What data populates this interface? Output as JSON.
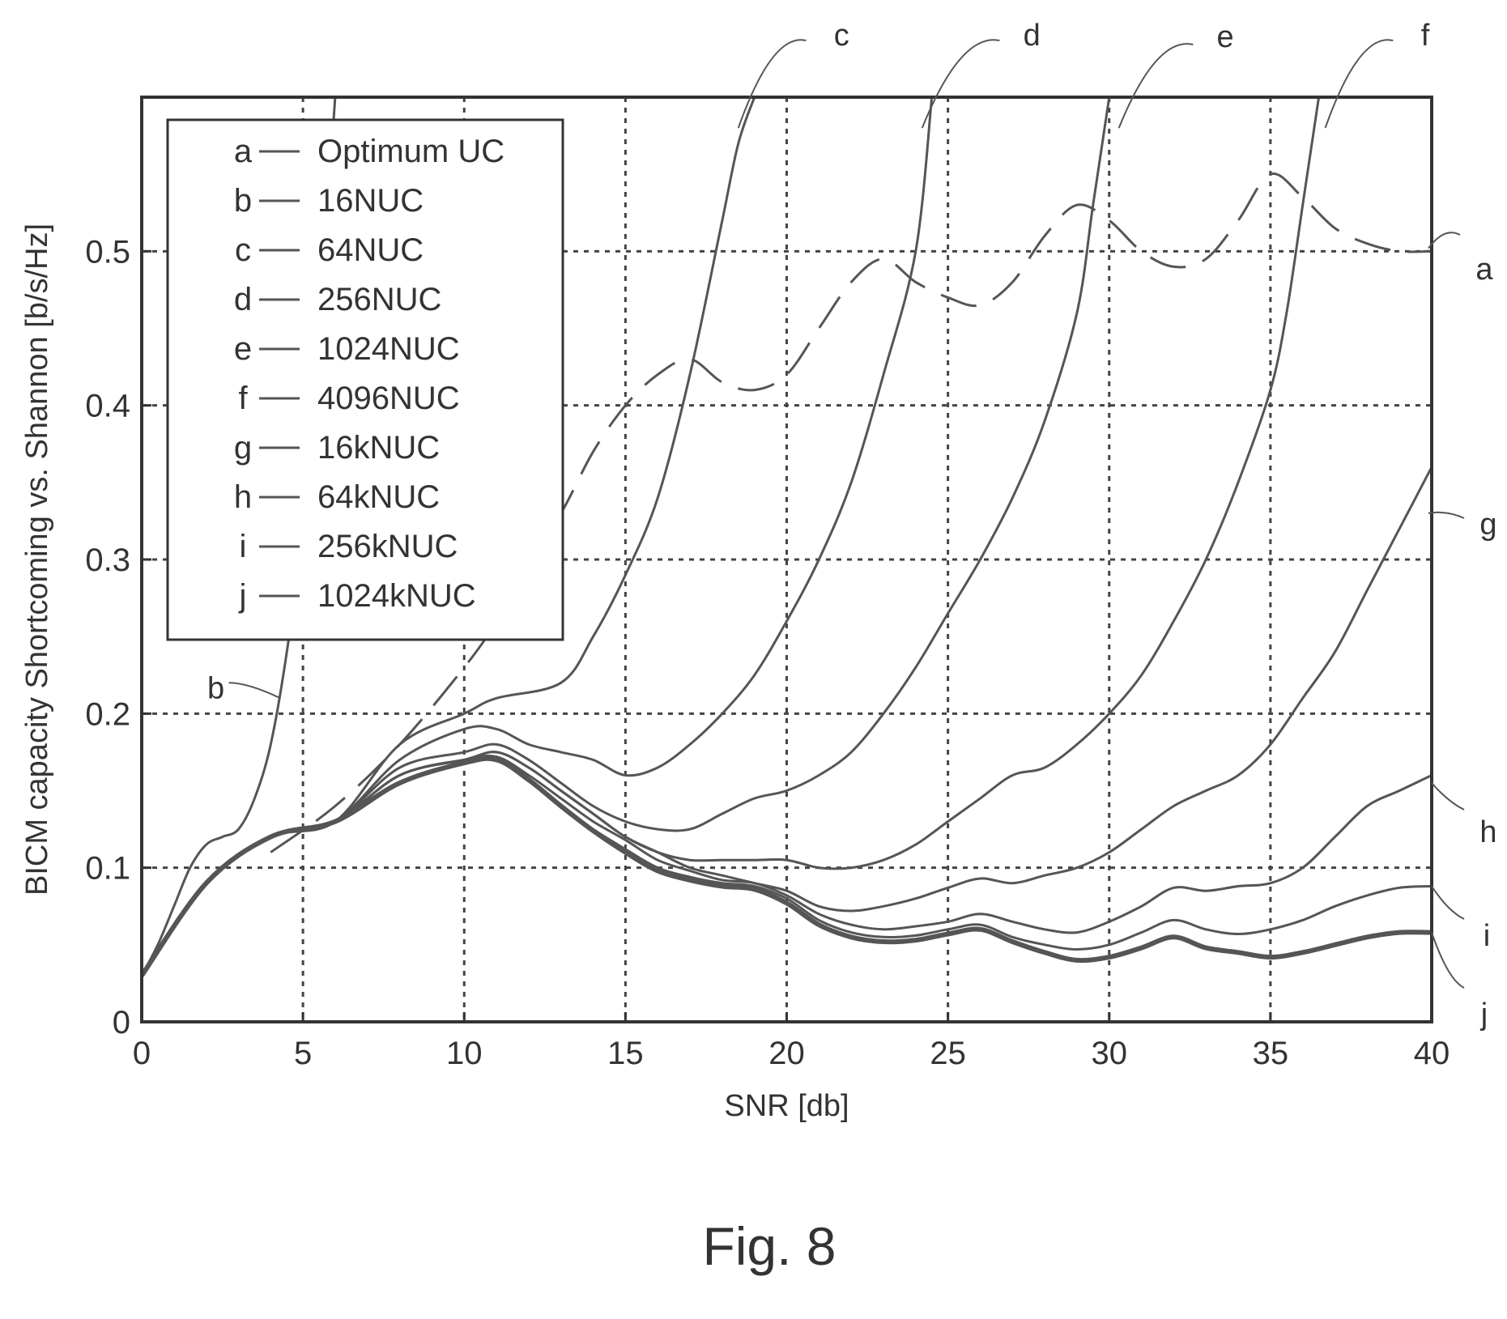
{
  "figure": {
    "caption": "Fig. 8"
  },
  "chart_data": {
    "type": "line",
    "xlabel": "SNR [db]",
    "ylabel": "BICM capacity Shortcoming vs. Shannon [b/s/Hz]",
    "xlim": [
      0,
      40
    ],
    "ylim": [
      0,
      0.6
    ],
    "xticks": [
      0,
      5,
      10,
      15,
      20,
      25,
      30,
      35,
      40
    ],
    "xtick_labels": [
      "0",
      "5",
      "10",
      "15",
      "20",
      "25",
      "30",
      "35",
      "40"
    ],
    "yticks": [
      0,
      0.1,
      0.2,
      0.3,
      0.4,
      0.5
    ],
    "ytick_labels": [
      "0",
      "0.1",
      "0.2",
      "0.3",
      "0.4",
      "0.5"
    ],
    "grid": true,
    "legend_position": "top-left",
    "colors": {
      "line": "#555555",
      "grid": "#444444",
      "frame": "#333333"
    },
    "series": [
      {
        "name": "Optimum UC",
        "letter": "a",
        "dash": true,
        "x": [
          4,
          6,
          8,
          10,
          11,
          12,
          13,
          14,
          15,
          16,
          17,
          18,
          19,
          20,
          21,
          22,
          23,
          24,
          25,
          26,
          27,
          28,
          29,
          30,
          31,
          32,
          33,
          34,
          35,
          36,
          37,
          38,
          39,
          40
        ],
        "y": [
          0.11,
          0.14,
          0.18,
          0.23,
          0.26,
          0.3,
          0.33,
          0.37,
          0.4,
          0.42,
          0.43,
          0.415,
          0.41,
          0.42,
          0.45,
          0.48,
          0.495,
          0.48,
          0.47,
          0.465,
          0.48,
          0.51,
          0.53,
          0.52,
          0.5,
          0.49,
          0.495,
          0.52,
          0.55,
          0.535,
          0.515,
          0.505,
          0.5,
          0.5
        ]
      },
      {
        "name": "16NUC",
        "letter": "b",
        "x": [
          0,
          0.5,
          1,
          1.5,
          2,
          2.5,
          3,
          3.5,
          4,
          4.5,
          5,
          5.5,
          6
        ],
        "y": [
          0.03,
          0.05,
          0.075,
          0.1,
          0.115,
          0.12,
          0.125,
          0.145,
          0.18,
          0.24,
          0.32,
          0.45,
          0.6
        ]
      },
      {
        "name": "64NUC",
        "letter": "c",
        "x": [
          0,
          2,
          4,
          6,
          8,
          10,
          11,
          13,
          14,
          15,
          16,
          17,
          18,
          18.5,
          19
        ],
        "y": [
          0.03,
          0.09,
          0.12,
          0.13,
          0.18,
          0.2,
          0.21,
          0.22,
          0.25,
          0.29,
          0.34,
          0.42,
          0.52,
          0.57,
          0.6
        ]
      },
      {
        "name": "256NUC",
        "letter": "d",
        "x": [
          0,
          2,
          4,
          6,
          8,
          10,
          11,
          12,
          13,
          14,
          15,
          16,
          17,
          18,
          19,
          20,
          21,
          22,
          23,
          24,
          24.5
        ],
        "y": [
          0.03,
          0.09,
          0.12,
          0.13,
          0.17,
          0.19,
          0.19,
          0.18,
          0.175,
          0.17,
          0.16,
          0.165,
          0.18,
          0.2,
          0.225,
          0.26,
          0.3,
          0.35,
          0.42,
          0.5,
          0.6
        ]
      },
      {
        "name": "1024NUC",
        "letter": "e",
        "x": [
          0,
          2,
          4,
          6,
          8,
          10,
          11,
          12,
          13,
          14,
          15,
          16,
          17,
          18,
          19,
          20,
          21,
          22,
          23,
          24,
          25,
          26,
          27,
          28,
          29,
          29.5,
          30
        ],
        "y": [
          0.03,
          0.09,
          0.12,
          0.13,
          0.165,
          0.175,
          0.18,
          0.17,
          0.155,
          0.14,
          0.13,
          0.125,
          0.125,
          0.135,
          0.145,
          0.15,
          0.16,
          0.175,
          0.2,
          0.23,
          0.265,
          0.3,
          0.34,
          0.39,
          0.46,
          0.53,
          0.6
        ]
      },
      {
        "name": "4096NUC",
        "letter": "f",
        "x": [
          0,
          2,
          4,
          6,
          8,
          10,
          11,
          12,
          13,
          14,
          15,
          16,
          17,
          18,
          19,
          20,
          21,
          22,
          23,
          24,
          25,
          26,
          27,
          28,
          29,
          30,
          31,
          32,
          33,
          34,
          35,
          35.5,
          36,
          36.5
        ],
        "y": [
          0.03,
          0.09,
          0.12,
          0.13,
          0.16,
          0.17,
          0.175,
          0.165,
          0.15,
          0.135,
          0.12,
          0.11,
          0.105,
          0.105,
          0.105,
          0.105,
          0.1,
          0.1,
          0.105,
          0.115,
          0.13,
          0.145,
          0.16,
          0.165,
          0.18,
          0.2,
          0.225,
          0.26,
          0.3,
          0.35,
          0.41,
          0.46,
          0.53,
          0.6
        ]
      },
      {
        "name": "16kNUC",
        "letter": "g",
        "x": [
          0,
          2,
          4,
          6,
          8,
          10,
          11,
          12,
          13,
          14,
          15,
          16,
          17,
          18,
          19,
          20,
          21,
          22,
          23,
          24,
          25,
          26,
          27,
          28,
          29,
          30,
          31,
          32,
          33,
          34,
          35,
          36,
          37,
          38,
          39,
          40
        ],
        "y": [
          0.03,
          0.09,
          0.12,
          0.13,
          0.16,
          0.17,
          0.175,
          0.165,
          0.15,
          0.135,
          0.12,
          0.11,
          0.1,
          0.095,
          0.09,
          0.085,
          0.075,
          0.072,
          0.075,
          0.08,
          0.087,
          0.093,
          0.09,
          0.095,
          0.1,
          0.11,
          0.125,
          0.14,
          0.15,
          0.16,
          0.18,
          0.21,
          0.24,
          0.28,
          0.32,
          0.36
        ]
      },
      {
        "name": "64kNUC",
        "letter": "h",
        "x": [
          0,
          2,
          4,
          6,
          8,
          10,
          11,
          12,
          13,
          14,
          15,
          16,
          17,
          18,
          19,
          20,
          21,
          22,
          23,
          24,
          25,
          26,
          27,
          28,
          29,
          30,
          31,
          32,
          33,
          34,
          35,
          36,
          37,
          38,
          39,
          40
        ],
        "y": [
          0.03,
          0.09,
          0.12,
          0.13,
          0.16,
          0.17,
          0.172,
          0.16,
          0.145,
          0.13,
          0.118,
          0.105,
          0.098,
          0.092,
          0.09,
          0.082,
          0.07,
          0.063,
          0.06,
          0.062,
          0.065,
          0.07,
          0.065,
          0.06,
          0.058,
          0.065,
          0.075,
          0.087,
          0.085,
          0.088,
          0.09,
          0.1,
          0.12,
          0.14,
          0.15,
          0.16
        ]
      },
      {
        "name": "256kNUC",
        "letter": "i",
        "x": [
          0,
          2,
          4,
          6,
          8,
          10,
          11,
          12,
          13,
          14,
          15,
          16,
          17,
          18,
          19,
          20,
          21,
          22,
          23,
          24,
          25,
          26,
          27,
          28,
          29,
          30,
          31,
          32,
          33,
          34,
          35,
          36,
          37,
          38,
          39,
          40
        ],
        "y": [
          0.03,
          0.09,
          0.12,
          0.13,
          0.155,
          0.168,
          0.17,
          0.158,
          0.14,
          0.125,
          0.112,
          0.1,
          0.094,
          0.09,
          0.088,
          0.08,
          0.066,
          0.058,
          0.055,
          0.056,
          0.06,
          0.063,
          0.055,
          0.05,
          0.047,
          0.05,
          0.058,
          0.066,
          0.06,
          0.057,
          0.06,
          0.066,
          0.075,
          0.082,
          0.087,
          0.088
        ]
      },
      {
        "name": "1024kNUC",
        "letter": "j",
        "x": [
          0,
          2,
          4,
          6,
          8,
          10,
          11,
          12,
          13,
          14,
          15,
          16,
          17,
          18,
          19,
          20,
          21,
          22,
          23,
          24,
          25,
          26,
          27,
          28,
          29,
          30,
          31,
          32,
          33,
          34,
          35,
          36,
          37,
          38,
          39,
          40
        ],
        "y": [
          0.03,
          0.09,
          0.12,
          0.13,
          0.155,
          0.168,
          0.17,
          0.157,
          0.14,
          0.124,
          0.11,
          0.098,
          0.092,
          0.088,
          0.086,
          0.077,
          0.063,
          0.055,
          0.052,
          0.053,
          0.057,
          0.06,
          0.052,
          0.045,
          0.04,
          0.042,
          0.048,
          0.055,
          0.048,
          0.045,
          0.042,
          0.045,
          0.05,
          0.055,
          0.058,
          0.058
        ]
      }
    ]
  }
}
